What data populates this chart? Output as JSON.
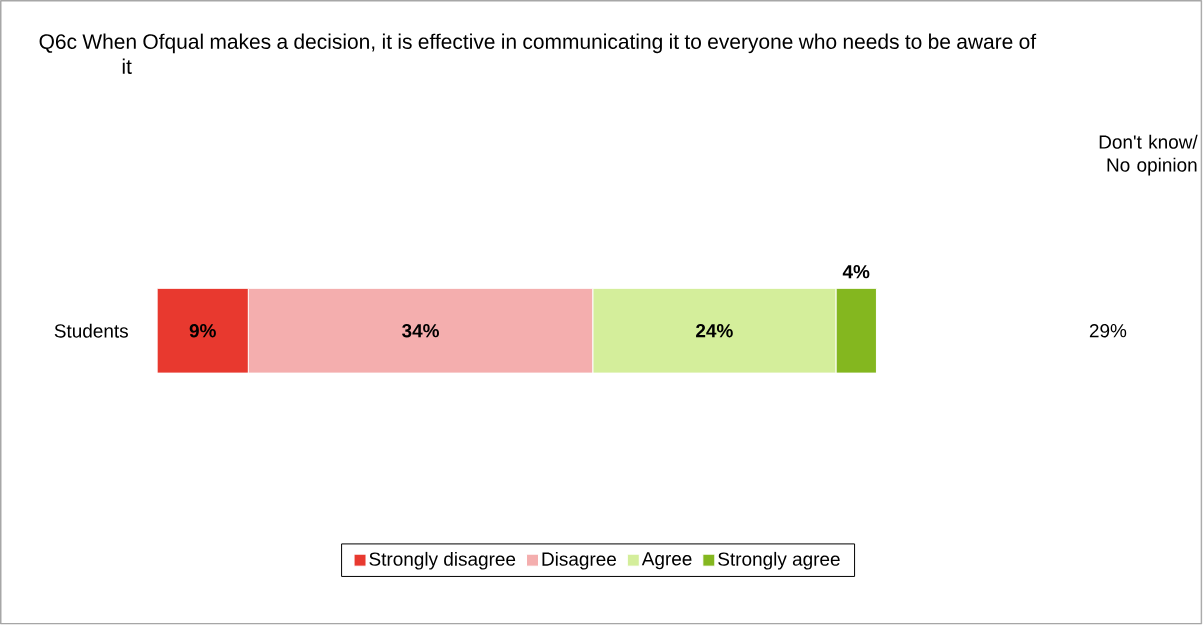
{
  "chart_data": {
    "type": "bar",
    "orientation": "horizontal",
    "stacked": true,
    "title": "Q6c   When Ofqual makes a decision, it is effective in communicating it to everyone who needs to be aware of it",
    "categories": [
      "Students"
    ],
    "series": [
      {
        "name": "Strongly disagree",
        "color": "#e8392f",
        "values": [
          9
        ],
        "value_labels": [
          "9%"
        ]
      },
      {
        "name": "Disagree",
        "color": "#f4aeae",
        "values": [
          34
        ],
        "value_labels": [
          "34%"
        ]
      },
      {
        "name": "Agree",
        "color": "#d4ee9b",
        "values": [
          24
        ],
        "value_labels": [
          "24%"
        ]
      },
      {
        "name": "Strongly agree",
        "color": "#84b71f",
        "values": [
          4
        ],
        "value_labels": [
          "4%"
        ]
      }
    ],
    "annotations": [
      "Don't know/ No opinion",
      "29%"
    ],
    "legend": "bottom"
  }
}
